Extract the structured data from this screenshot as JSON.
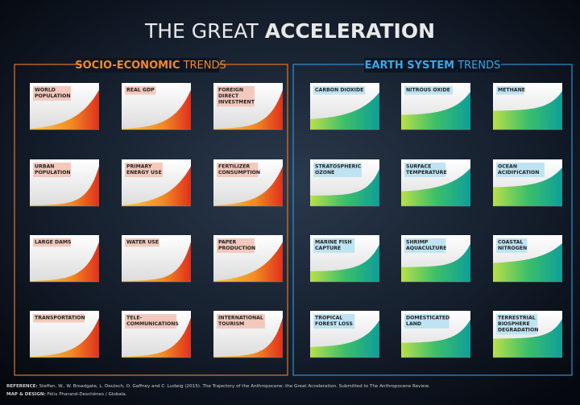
{
  "header": {
    "title_light": "THE GREAT",
    "title_bold": "ACCELERATION"
  },
  "panels": [
    {
      "title_bold": "SOCIO-ECONOMIC",
      "title_light": "TRENDS",
      "tiles": [
        {
          "lines": [
            "WORLD",
            "POPULATION"
          ]
        },
        {
          "lines": [
            "REAL GDP"
          ]
        },
        {
          "lines": [
            "FOREIGN",
            "DIRECT",
            "INVESTMENT"
          ]
        },
        {
          "lines": [
            "URBAN",
            "POPULATION"
          ]
        },
        {
          "lines": [
            "PRIMARY",
            "ENERGY USE"
          ]
        },
        {
          "lines": [
            "FERTILIZER",
            "CONSUMPTION"
          ]
        },
        {
          "lines": [
            "LARGE DAMS"
          ]
        },
        {
          "lines": [
            "WATER USE"
          ]
        },
        {
          "lines": [
            "PAPER",
            "PRODUCTION"
          ]
        },
        {
          "lines": [
            "TRANSPORTATION"
          ]
        },
        {
          "lines": [
            "TELE-",
            "COMMUNICATIONS"
          ]
        },
        {
          "lines": [
            "INTERNATIONAL",
            "TOURISM"
          ]
        }
      ]
    },
    {
      "title_bold": "EARTH SYSTEM",
      "title_light": "TRENDS",
      "tiles": [
        {
          "lines": [
            "CARBON DIOXIDE"
          ]
        },
        {
          "lines": [
            "NITROUS OXIDE"
          ]
        },
        {
          "lines": [
            "METHANE"
          ]
        },
        {
          "lines": [
            "STRATOSPHERIC",
            "OZONE"
          ]
        },
        {
          "lines": [
            "SURFACE",
            "TEMPERATURE"
          ]
        },
        {
          "lines": [
            "OCEAN",
            "ACIDIFICATION"
          ]
        },
        {
          "lines": [
            "MARINE FISH",
            "CAPTURE"
          ]
        },
        {
          "lines": [
            "SHRIMP",
            "AQUACULTURE"
          ]
        },
        {
          "lines": [
            "COASTAL",
            "NITROGEN"
          ]
        },
        {
          "lines": [
            "TROPICAL",
            "FOREST LOSS"
          ]
        },
        {
          "lines": [
            "DOMESTICATED",
            "LAND"
          ]
        },
        {
          "lines": [
            "TERRESTRIAL",
            "BIOSPHERE",
            "DEGRADATION"
          ]
        }
      ]
    }
  ],
  "footer": {
    "reference_label": "REFERENCE:",
    "reference": "Steffen, W., W. Broadgate, L. Deutsch, O. Gaffney and C. Ludwig (2015). The Trajectory of the Anthropocene: the Great Acceleration. Submitted to The Anthropocene Review.",
    "design_label": "MAP & DESIGN:",
    "design": "Félix Pharand-Deschênes / Globaïa."
  }
}
